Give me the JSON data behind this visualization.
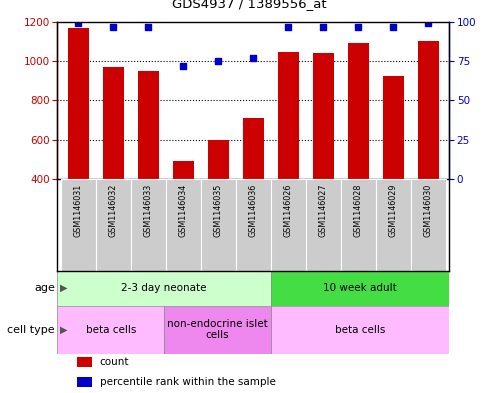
{
  "title": "GDS4937 / 1389556_at",
  "samples": [
    "GSM1146031",
    "GSM1146032",
    "GSM1146033",
    "GSM1146034",
    "GSM1146035",
    "GSM1146036",
    "GSM1146026",
    "GSM1146027",
    "GSM1146028",
    "GSM1146029",
    "GSM1146030"
  ],
  "counts": [
    1170,
    970,
    950,
    490,
    600,
    710,
    1045,
    1040,
    1090,
    925,
    1100
  ],
  "percentiles": [
    99,
    97,
    97,
    72,
    75,
    77,
    97,
    97,
    97,
    97,
    99
  ],
  "bar_color": "#cc0000",
  "dot_color": "#0000cc",
  "ylim_left": [
    400,
    1200
  ],
  "ylim_right": [
    0,
    100
  ],
  "yticks_left": [
    400,
    600,
    800,
    1000,
    1200
  ],
  "yticks_right": [
    0,
    25,
    50,
    75,
    100
  ],
  "grid_lines": [
    600,
    800,
    1000
  ],
  "age_groups": [
    {
      "label": "2-3 day neonate",
      "start": 0,
      "end": 6,
      "color": "#ccffcc"
    },
    {
      "label": "10 week adult",
      "start": 6,
      "end": 11,
      "color": "#44dd44"
    }
  ],
  "cell_type_groups": [
    {
      "label": "beta cells",
      "start": 0,
      "end": 3,
      "color": "#ffbbff"
    },
    {
      "label": "non-endocrine islet\ncells",
      "start": 3,
      "end": 6,
      "color": "#ee88ee"
    },
    {
      "label": "beta cells",
      "start": 6,
      "end": 11,
      "color": "#ffbbff"
    }
  ],
  "legend_items": [
    {
      "color": "#cc0000",
      "label": "count"
    },
    {
      "color": "#0000cc",
      "label": "percentile rank within the sample"
    }
  ],
  "left_axis_color": "#cc0000",
  "right_axis_color": "#0000cc",
  "sample_box_color": "#cccccc",
  "bar_width": 0.6
}
